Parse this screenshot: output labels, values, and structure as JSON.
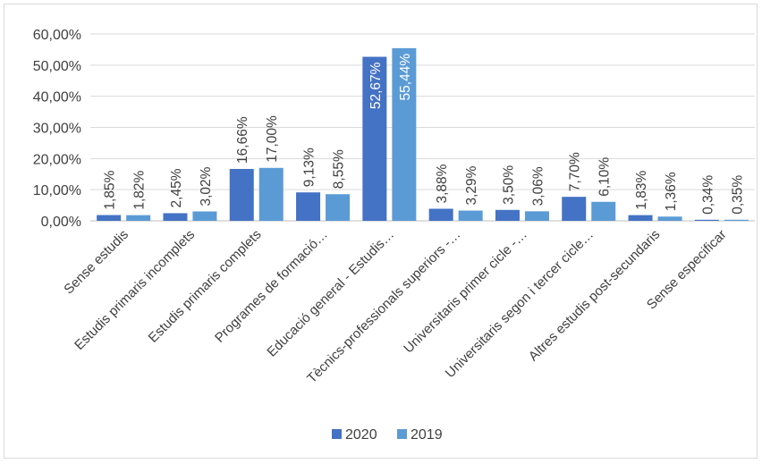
{
  "chart_data": {
    "type": "bar",
    "title": "",
    "xlabel": "",
    "ylabel": "",
    "ylim": [
      0,
      0.6
    ],
    "yticks": [
      "0,00%",
      "10,00%",
      "20,00%",
      "30,00%",
      "40,00%",
      "50,00%",
      "60,00%"
    ],
    "grid": true,
    "legend_position": "bottom",
    "categories": [
      "Sense estudis",
      "Estudis primaris incomplets",
      "Estudis primaris complets",
      "Programes de formació…",
      "Educació general - Estudis…",
      "Tècnics-professionals superiors -…",
      "Universitaris primer cicle -…",
      "Universitaris segon i tercer cicle…",
      "Altres estudis post-secundaris",
      "Sense especificar"
    ],
    "series": [
      {
        "name": "2020",
        "color": "#4472c4",
        "values": [
          0.0185,
          0.0245,
          0.1666,
          0.0913,
          0.5267,
          0.0388,
          0.035,
          0.077,
          0.0183,
          0.0034
        ],
        "labels": [
          "1,85%",
          "2,45%",
          "16,66%",
          "9,13%",
          "52,67%",
          "3,88%",
          "3,50%",
          "7,70%",
          "1,83%",
          "0,34%"
        ]
      },
      {
        "name": "2019",
        "color": "#5b9bd5",
        "values": [
          0.0182,
          0.0302,
          0.17,
          0.0855,
          0.5544,
          0.0329,
          0.0306,
          0.061,
          0.0136,
          0.0035
        ],
        "labels": [
          "1,82%",
          "3,02%",
          "17,00%",
          "8,55%",
          "55,44%",
          "3,29%",
          "3,06%",
          "6,10%",
          "1,36%",
          "0,35%"
        ]
      }
    ]
  }
}
